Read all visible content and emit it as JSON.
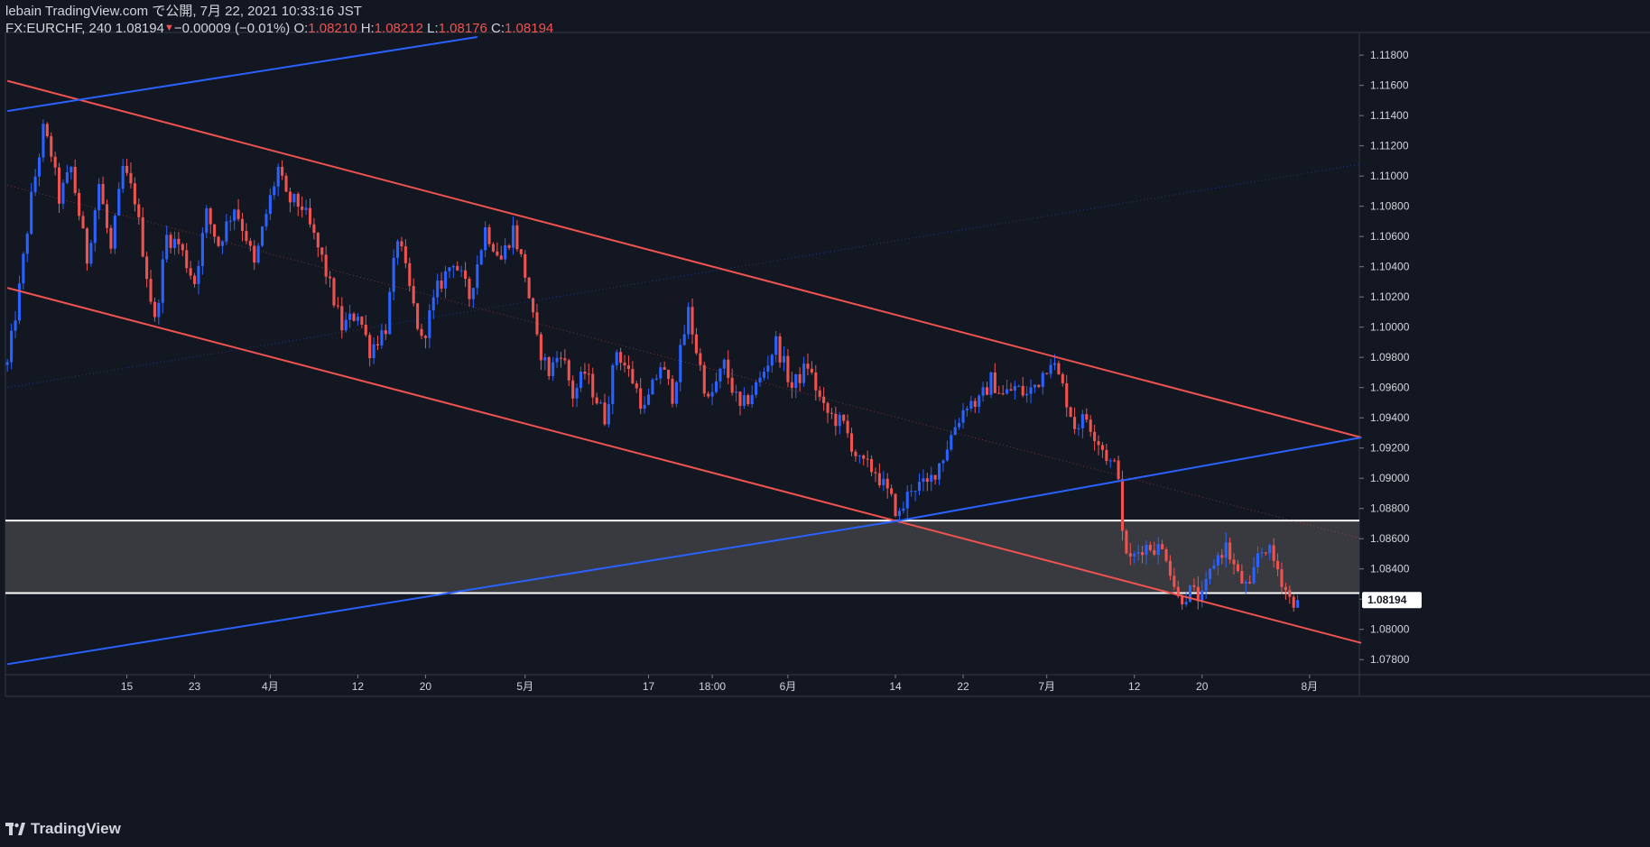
{
  "header": {
    "publisher": "lebain TradingView.com で公開, 7月 22, 2021 10:33:16 JST",
    "symbol": "FX:EURCHF, 240",
    "last": "1.08194",
    "change": "−0.00009 (−0.01%)",
    "o_label": "O:",
    "o_value": "1.08210",
    "h_label": "H:",
    "h_value": "1.08212",
    "l_label": "L:",
    "l_value": "1.08176",
    "c_label": "C:",
    "c_value": "1.08194"
  },
  "brand": {
    "name": "TradingView"
  },
  "colors": {
    "background": "#131722",
    "up": "#2962ff",
    "down": "#ef5350",
    "grid": "#2a2e39",
    "zone": "#3a3c42"
  },
  "chart_data": {
    "type": "candlestick",
    "symbol": "FX:EURCHF",
    "interval": "240",
    "ylim": [
      1.077,
      1.1195
    ],
    "yticks": [
      1.078,
      1.08,
      1.082,
      1.084,
      1.086,
      1.088,
      1.09,
      1.092,
      1.094,
      1.096,
      1.098,
      1.1,
      1.102,
      1.104,
      1.106,
      1.108,
      1.11,
      1.112,
      1.114,
      1.116,
      1.118
    ],
    "ytick_labels": [
      "1.07800",
      "1.08000",
      "1.08200",
      "1.08400",
      "1.08600",
      "1.08800",
      "1.09000",
      "1.09200",
      "1.09400",
      "1.09600",
      "1.09800",
      "1.10000",
      "1.10200",
      "1.10400",
      "1.10600",
      "1.10800",
      "1.11000",
      "1.11200",
      "1.11400",
      "1.11600",
      "1.11800"
    ],
    "xtick_labels": [
      "15",
      "23",
      "4月",
      "12",
      "20",
      "5月",
      "17",
      "18:00",
      "6月",
      "14",
      "22",
      "7月",
      "12",
      "20",
      "8月"
    ],
    "xtick_bar_index": [
      30,
      47,
      66,
      88,
      105,
      130,
      161,
      177,
      196,
      223,
      240,
      261,
      283,
      300,
      327
    ],
    "bar_count": 340,
    "last_price": 1.08194,
    "last_price_label": "1.08194",
    "path_keypoints": [
      [
        0,
        1.0975
      ],
      [
        3,
        1.1025
      ],
      [
        6,
        1.1085
      ],
      [
        9,
        1.113
      ],
      [
        11,
        1.1115
      ],
      [
        13,
        1.1085
      ],
      [
        16,
        1.1105
      ],
      [
        20,
        1.1045
      ],
      [
        23,
        1.1095
      ],
      [
        26,
        1.105
      ],
      [
        29,
        1.1105
      ],
      [
        32,
        1.1085
      ],
      [
        35,
        1.1035
      ],
      [
        37,
        1.1003
      ],
      [
        40,
        1.106
      ],
      [
        43,
        1.1055
      ],
      [
        47,
        1.103
      ],
      [
        50,
        1.1075
      ],
      [
        53,
        1.1055
      ],
      [
        57,
        1.108
      ],
      [
        60,
        1.106
      ],
      [
        62,
        1.104
      ],
      [
        65,
        1.1075
      ],
      [
        68,
        1.1105
      ],
      [
        70,
        1.1085
      ],
      [
        74,
        1.108
      ],
      [
        79,
        1.1045
      ],
      [
        84,
        1.1
      ],
      [
        88,
        1.101
      ],
      [
        91,
        1.0985
      ],
      [
        95,
        1.1
      ],
      [
        98,
        1.106
      ],
      [
        101,
        1.1025
      ],
      [
        104,
        1.099
      ],
      [
        108,
        1.1025
      ],
      [
        112,
        1.1045
      ],
      [
        116,
        1.102
      ],
      [
        120,
        1.1065
      ],
      [
        124,
        1.1045
      ],
      [
        127,
        1.1065
      ],
      [
        130,
        1.1035
      ],
      [
        133,
        1.099
      ],
      [
        136,
        1.097
      ],
      [
        139,
        1.0985
      ],
      [
        142,
        1.0955
      ],
      [
        145,
        1.097
      ],
      [
        150,
        1.094
      ],
      [
        153,
        1.0985
      ],
      [
        157,
        1.0965
      ],
      [
        160,
        1.0945
      ],
      [
        164,
        1.0975
      ],
      [
        167,
        1.0955
      ],
      [
        171,
        1.101
      ],
      [
        173,
        1.0985
      ],
      [
        176,
        1.095
      ],
      [
        180,
        1.0975
      ],
      [
        184,
        1.0945
      ],
      [
        189,
        1.0965
      ],
      [
        193,
        1.099
      ],
      [
        197,
        1.096
      ],
      [
        201,
        1.0975
      ],
      [
        205,
        1.0945
      ],
      [
        210,
        1.0935
      ],
      [
        214,
        1.091
      ],
      [
        218,
        1.0905
      ],
      [
        222,
        1.0885
      ],
      [
        224,
        1.0875
      ],
      [
        227,
        1.0895
      ],
      [
        231,
        1.0895
      ],
      [
        235,
        1.0915
      ],
      [
        238,
        1.0935
      ],
      [
        241,
        1.095
      ],
      [
        244,
        1.095
      ],
      [
        247,
        1.0965
      ],
      [
        250,
        1.0955
      ],
      [
        253,
        1.096
      ],
      [
        256,
        1.0955
      ],
      [
        259,
        1.0965
      ],
      [
        262,
        1.098
      ],
      [
        265,
        1.096
      ],
      [
        268,
        1.0935
      ],
      [
        271,
        1.094
      ],
      [
        274,
        1.0925
      ],
      [
        277,
        1.091
      ],
      [
        279,
        1.0905
      ],
      [
        280,
        1.086
      ],
      [
        282,
        1.0845
      ],
      [
        285,
        1.0855
      ],
      [
        288,
        1.0855
      ],
      [
        291,
        1.085
      ],
      [
        294,
        1.082
      ],
      [
        297,
        1.0825
      ],
      [
        300,
        1.082
      ],
      [
        303,
        1.0845
      ],
      [
        306,
        1.0855
      ],
      [
        309,
        1.0835
      ],
      [
        312,
        1.0825
      ],
      [
        314,
        1.085
      ],
      [
        316,
        1.0855
      ],
      [
        319,
        1.084
      ],
      [
        322,
        1.082
      ],
      [
        324,
        1.08194
      ]
    ],
    "drawings": [
      {
        "kind": "trendline",
        "color": "#ef5350",
        "points": [
          [
            0,
            1.1163
          ],
          [
            340,
            1.0927
          ]
        ]
      },
      {
        "kind": "trendline",
        "color": "#ef5350",
        "points": [
          [
            0,
            1.1026
          ],
          [
            340,
            1.0791
          ]
        ]
      },
      {
        "kind": "trendline",
        "color": "#2962ff",
        "points": [
          [
            0,
            1.1143
          ],
          [
            118,
            1.1192
          ]
        ]
      },
      {
        "kind": "trendline",
        "color": "#2962ff",
        "points": [
          [
            0,
            1.0777
          ],
          [
            224,
            1.0872
          ],
          [
            340,
            1.0927
          ]
        ]
      },
      {
        "kind": "dotted",
        "color": "#ef5350",
        "points": [
          [
            0,
            1.1094
          ],
          [
            340,
            1.086
          ]
        ]
      },
      {
        "kind": "dotted",
        "color": "#2962ff",
        "points": [
          [
            0,
            1.096
          ],
          [
            340,
            1.1108
          ]
        ]
      },
      {
        "kind": "zone",
        "top": 1.0872,
        "bottom": 1.0824
      }
    ]
  }
}
